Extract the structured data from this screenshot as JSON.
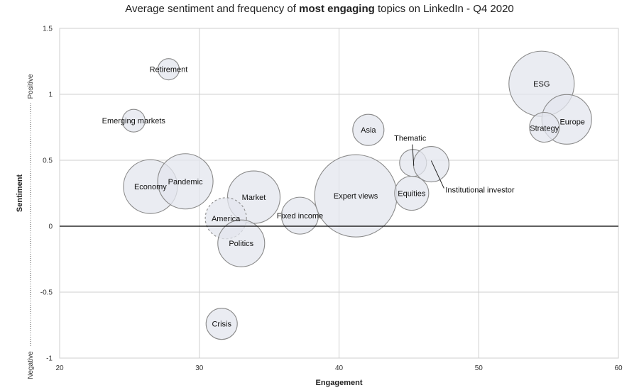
{
  "chart_data": {
    "type": "scatter",
    "title_pre": "Average sentiment and frequency of ",
    "title_bold": "most engaging",
    "title_post": " topics on LinkedIn - Q4 2020",
    "xlabel": "Engagement",
    "ylabel": "Sentiment",
    "y_positive_label": "Positive",
    "y_negative_label": "Negative",
    "xlim": [
      20,
      60
    ],
    "ylim": [
      -1,
      1.5
    ],
    "x_ticks": [
      20,
      30,
      40,
      50,
      60
    ],
    "y_ticks": [
      -1,
      -0.5,
      0,
      0.5,
      1,
      1.5
    ],
    "grid": true,
    "colors": {
      "bubble_fill": "#e3e5ee",
      "bubble_stroke": "#8a8a8a",
      "grid": "#cfcfcf",
      "zero_line": "#000000"
    },
    "points": [
      {
        "label": "Retirement",
        "x": 27.8,
        "y": 1.19,
        "r": 15
      },
      {
        "label": "Emerging markets",
        "x": 25.3,
        "y": 0.8,
        "r": 16
      },
      {
        "label": "Economy",
        "x": 26.5,
        "y": 0.3,
        "r": 38
      },
      {
        "label": "Pandemic",
        "x": 29.0,
        "y": 0.34,
        "r": 39
      },
      {
        "label": "Market",
        "x": 33.9,
        "y": 0.22,
        "r": 37
      },
      {
        "label": "America",
        "x": 31.9,
        "y": 0.06,
        "r": 29,
        "dashed": true
      },
      {
        "label": "Politics",
        "x": 33.0,
        "y": -0.13,
        "r": 33
      },
      {
        "label": "Crisis",
        "x": 31.6,
        "y": -0.74,
        "r": 22
      },
      {
        "label": "Fixed income",
        "x": 37.2,
        "y": 0.08,
        "r": 26
      },
      {
        "label": "Expert views",
        "x": 41.2,
        "y": 0.23,
        "r": 58
      },
      {
        "label": "Asia",
        "x": 42.1,
        "y": 0.73,
        "r": 22
      },
      {
        "label": "Thematic",
        "x": 45.3,
        "y": 0.48,
        "r": 19
      },
      {
        "label": "Institutional investor",
        "x": 46.6,
        "y": 0.47,
        "r": 25
      },
      {
        "label": "Equities",
        "x": 45.2,
        "y": 0.25,
        "r": 24
      },
      {
        "label": "ESG",
        "x": 54.5,
        "y": 1.08,
        "r": 46
      },
      {
        "label": "Europe",
        "x": 56.3,
        "y": 0.81,
        "r": 35
      },
      {
        "label": "Strategy",
        "x": 54.7,
        "y": 0.75,
        "r": 21
      }
    ]
  }
}
